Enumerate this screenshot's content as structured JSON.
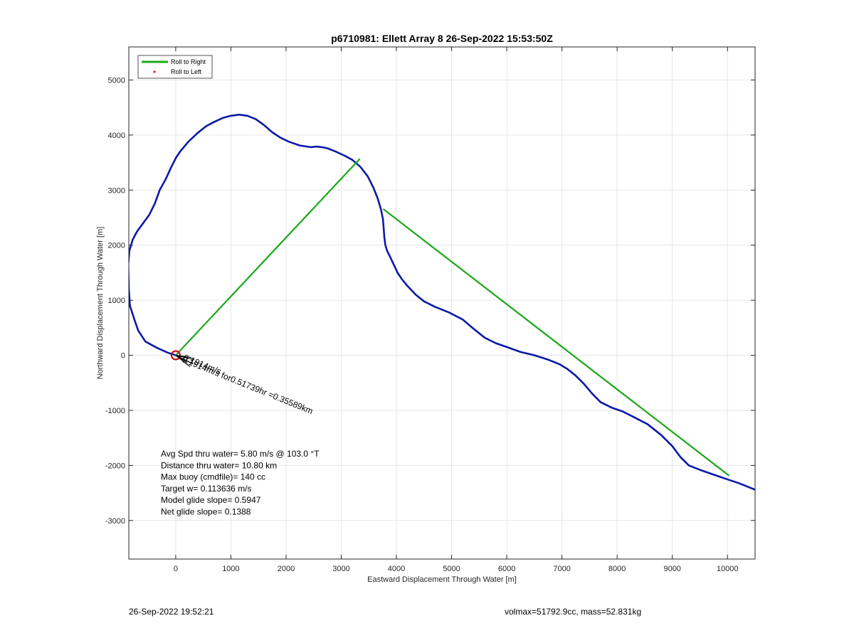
{
  "footer": {
    "left": "26-Sep-2022 19:52:21",
    "right": "volmax=51792.9cc, mass=52.831kg"
  },
  "chart_data": {
    "type": "line",
    "title": "p6710981: Ellett Array 8 26-Sep-2022 15:53:50Z",
    "xlabel": "Eastward Displacement Through Water [m]",
    "ylabel": "Northward Displacement Through Water [m]",
    "xlim": [
      -850,
      10500
    ],
    "ylim": [
      -3700,
      5600
    ],
    "xticks": [
      0,
      1000,
      2000,
      3000,
      4000,
      5000,
      6000,
      7000,
      8000,
      9000,
      10000
    ],
    "yticks": [
      -3000,
      -2000,
      -1000,
      0,
      1000,
      2000,
      3000,
      4000,
      5000
    ],
    "grid": true,
    "legend": {
      "location": "top-left",
      "entries": [
        {
          "label": "Roll to Right",
          "color": "#1aa71a",
          "style": "line"
        },
        {
          "label": "Roll to Left",
          "color": "#ff0000",
          "style": "dot"
        }
      ]
    },
    "series": [
      {
        "color": "#0b1aa8",
        "x": [
          0,
          -150,
          -350,
          -550,
          -680,
          -750,
          -830,
          -850,
          -860,
          -840,
          -780,
          -700,
          -590,
          -480,
          -380,
          -290,
          -180,
          -80,
          0,
          80,
          230,
          400,
          550,
          700,
          850,
          1000,
          1150,
          1300,
          1450,
          1600,
          1750,
          1900,
          2050,
          2250,
          2450,
          2550,
          2650,
          2750,
          2900,
          3050,
          3200,
          3350,
          3480,
          3580,
          3660,
          3720,
          3755,
          3770,
          3780,
          3800,
          3830,
          3880,
          3950,
          4020,
          4100,
          4200,
          4350,
          4500,
          4700,
          4950,
          5200,
          5400,
          5600,
          5800,
          6000,
          6250,
          6500,
          6750,
          6950,
          7100,
          7250,
          7400,
          7550,
          7700,
          7900,
          8100,
          8300,
          8550,
          8800,
          9000,
          9150,
          9300,
          9500,
          9700,
          9900,
          10050,
          10200,
          10350,
          10500
        ],
        "y": [
          0,
          50,
          140,
          250,
          450,
          650,
          900,
          1200,
          1650,
          1900,
          2100,
          2250,
          2400,
          2550,
          2750,
          3000,
          3200,
          3420,
          3580,
          3700,
          3880,
          4040,
          4160,
          4240,
          4310,
          4350,
          4370,
          4350,
          4290,
          4180,
          4050,
          3950,
          3880,
          3810,
          3780,
          3790,
          3780,
          3760,
          3700,
          3630,
          3550,
          3420,
          3250,
          3050,
          2850,
          2650,
          2480,
          2300,
          2150,
          2000,
          1900,
          1800,
          1650,
          1500,
          1380,
          1260,
          1100,
          980,
          880,
          780,
          650,
          480,
          320,
          220,
          150,
          60,
          0,
          -80,
          -160,
          -250,
          -370,
          -520,
          -700,
          -850,
          -950,
          -1020,
          -1120,
          -1250,
          -1450,
          -1650,
          -1850,
          -2000,
          -2080,
          -2150,
          -2220,
          -2270,
          -2320,
          -2380,
          -2440
        ]
      },
      {
        "name": "Roll to Right",
        "color": "#1aa71a",
        "x": [
          0,
          3330
        ],
        "y": [
          0,
          3560
        ]
      },
      {
        "name": "Roll to Right",
        "color": "#1aa71a",
        "x": [
          3770,
          10020
        ],
        "y": [
          2650,
          -2180
        ]
      }
    ],
    "marker": {
      "x": 0,
      "y": 0,
      "color": "#cc0000"
    },
    "annotation_rotated": "0.1914m/s for0.51739hr =0.35589km",
    "annotation_overlap": "0.1914m/s",
    "info_text": [
      "Avg Spd thru water=  5.80 m/s @ 103.0 °T",
      "Distance thru water= 10.80 km",
      "Max buoy (cmdfile)= 140 cc",
      "Target w= 0.113636 m/s",
      "Model glide slope= 0.5947",
      "Net glide slope= 0.1388"
    ]
  }
}
